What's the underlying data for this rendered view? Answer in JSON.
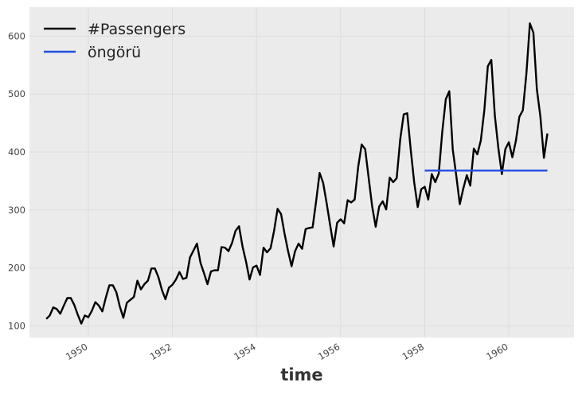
{
  "chart_data": {
    "type": "line",
    "title": "",
    "xlabel": "time",
    "ylabel": "",
    "xlim": [
      1948.6,
      1961.55
    ],
    "ylim": [
      80,
      650
    ],
    "grid": true,
    "legend_position": "top-left",
    "xticks": [
      1950,
      1952,
      1954,
      1956,
      1958,
      1960
    ],
    "xtick_labels": [
      "1950",
      "1952",
      "1954",
      "1956",
      "1958",
      "1960"
    ],
    "yticks": [
      100,
      200,
      300,
      400,
      500,
      600
    ],
    "ytick_labels": [
      "100",
      "200",
      "300",
      "400",
      "500",
      "600"
    ],
    "series": [
      {
        "name": "#Passengers",
        "color": "#000000",
        "x_start": 1949,
        "step": 0.0833333,
        "values": [
          112,
          118,
          132,
          129,
          121,
          135,
          148,
          148,
          136,
          119,
          104,
          118,
          115,
          126,
          141,
          135,
          125,
          149,
          170,
          170,
          158,
          133,
          114,
          140,
          145,
          150,
          178,
          163,
          172,
          178,
          199,
          199,
          184,
          162,
          146,
          166,
          171,
          180,
          193,
          181,
          183,
          218,
          230,
          242,
          209,
          191,
          172,
          194,
          196,
          196,
          236,
          235,
          229,
          243,
          264,
          272,
          237,
          211,
          180,
          201,
          204,
          188,
          235,
          227,
          234,
          264,
          302,
          293,
          259,
          229,
          203,
          229,
          242,
          233,
          267,
          269,
          270,
          315,
          364,
          347,
          312,
          274,
          237,
          278,
          284,
          277,
          317,
          313,
          318,
          374,
          413,
          405,
          355,
          306,
          271,
          306,
          315,
          301,
          356,
          348,
          355,
          422,
          465,
          467,
          404,
          347,
          305,
          336,
          340,
          318,
          362,
          348,
          363,
          435,
          491,
          505,
          404,
          359,
          310,
          337,
          360,
          342,
          406,
          396,
          420,
          472,
          548,
          559,
          463,
          407,
          362,
          405,
          417,
          391,
          419,
          461,
          472,
          535,
          622,
          606,
          508,
          461,
          390,
          432
        ]
      },
      {
        "name": "öngörü",
        "color": "#1f4fe0",
        "x": [
          1958.0,
          1960.9167
        ],
        "values": [
          368,
          368
        ]
      }
    ]
  }
}
